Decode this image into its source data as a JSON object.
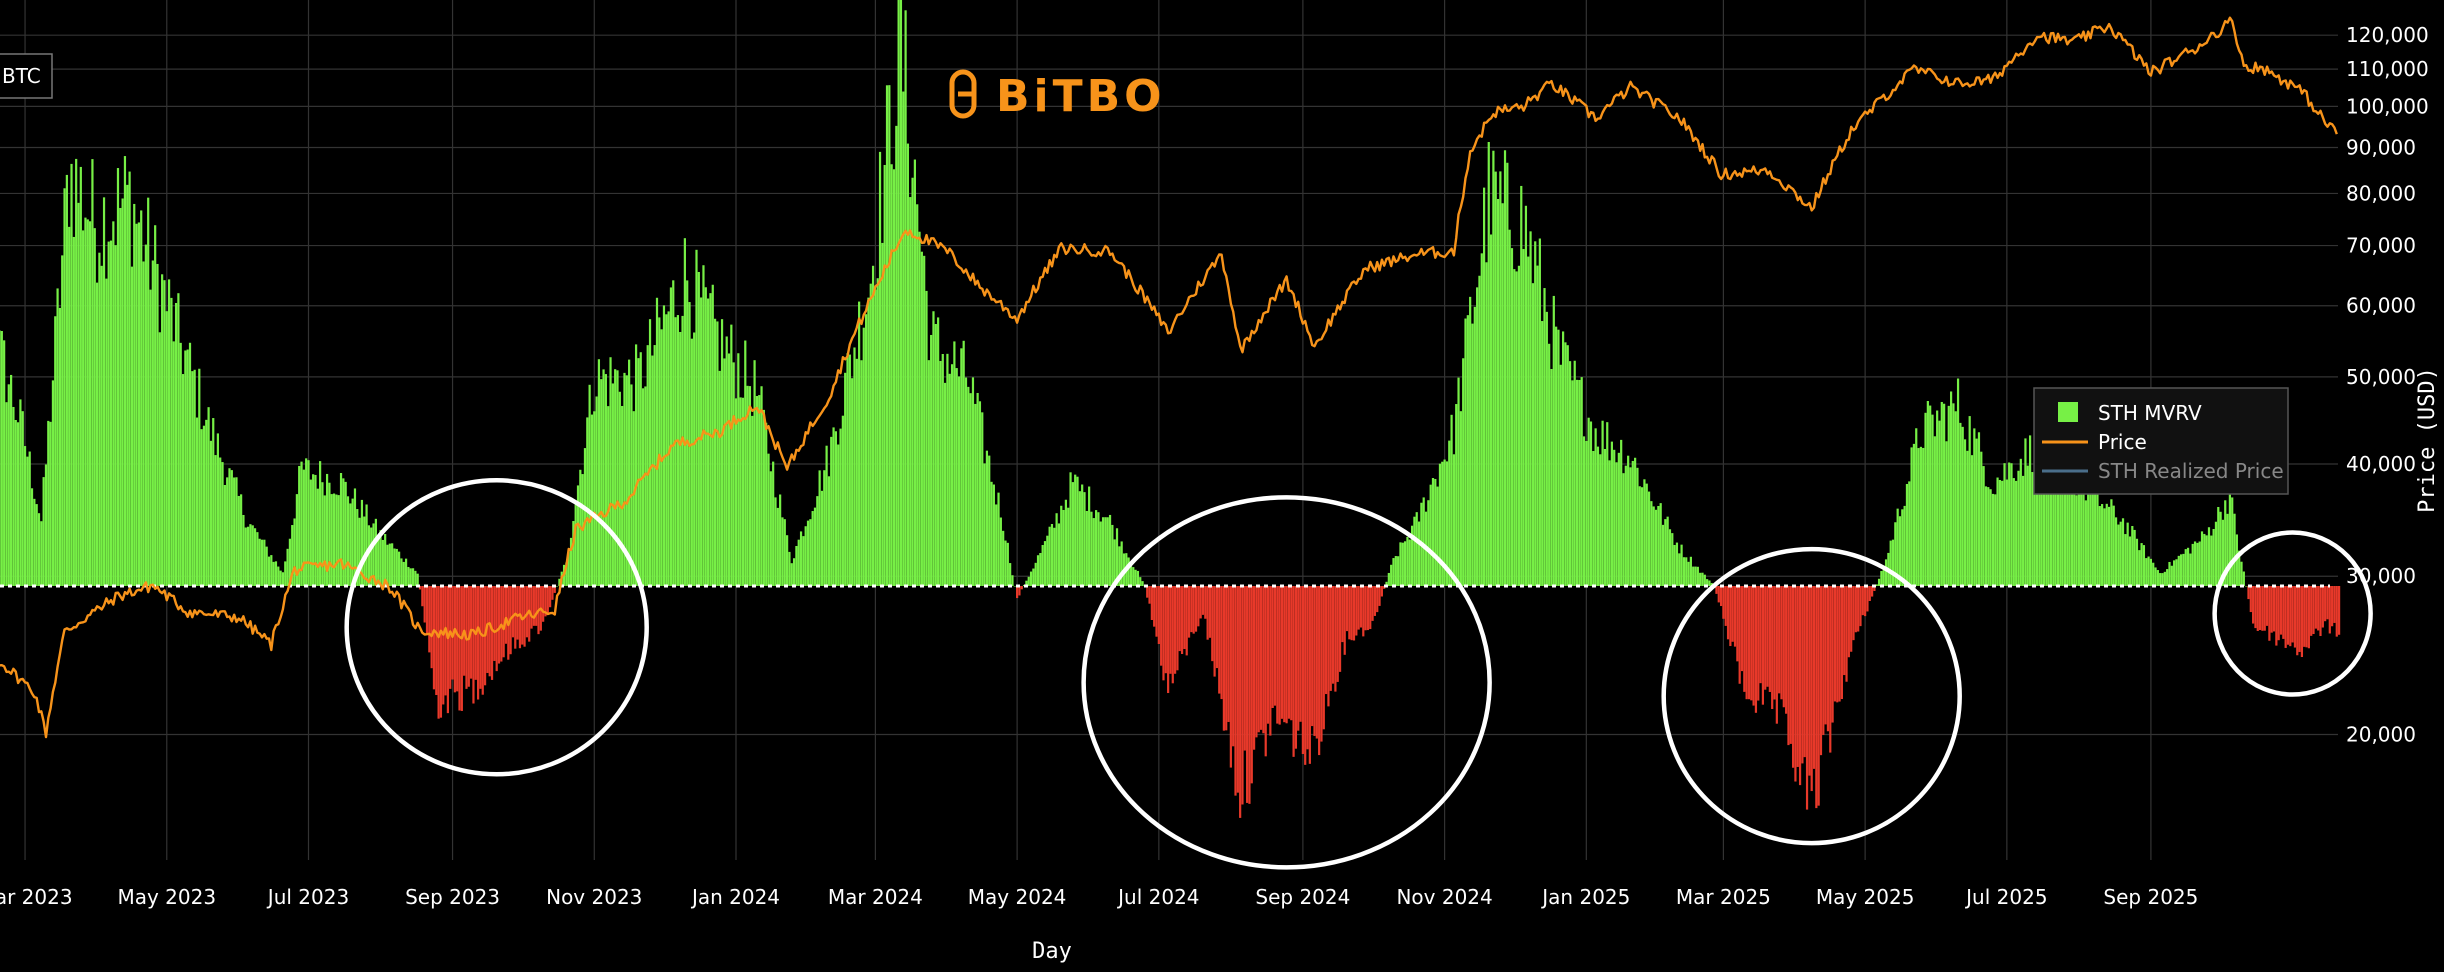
{
  "ticker": {
    "label": "BTC"
  },
  "brand": {
    "name": "BiTBO",
    "color": "#f7931a"
  },
  "colors": {
    "background": "#000000",
    "grid": "#333333",
    "positive_bar": "#77f046",
    "negative_bar": "#e8392a",
    "price_line": "#f7931a",
    "realized_line": "#4a6e8a",
    "annotation_circle": "#ffffff",
    "baseline": "#ffffff"
  },
  "chart_data": {
    "type": "bar",
    "xlabel": "Day",
    "ylabel_right": "Price (USD)",
    "x_range": [
      "2023-02-01",
      "2025-11-30"
    ],
    "x_ticks": [
      {
        "date": "2023-03-01",
        "label": "Mar 2023"
      },
      {
        "date": "2023-05-01",
        "label": "May 2023"
      },
      {
        "date": "2023-07-01",
        "label": "Jul 2023"
      },
      {
        "date": "2023-09-01",
        "label": "Sep 2023"
      },
      {
        "date": "2023-11-01",
        "label": "Nov 2023"
      },
      {
        "date": "2024-01-01",
        "label": "Jan 2024"
      },
      {
        "date": "2024-03-01",
        "label": "Mar 2024"
      },
      {
        "date": "2024-05-01",
        "label": "May 2024"
      },
      {
        "date": "2024-07-01",
        "label": "Jul 2024"
      },
      {
        "date": "2024-09-01",
        "label": "Sep 2024"
      },
      {
        "date": "2024-11-01",
        "label": "Nov 2024"
      },
      {
        "date": "2025-01-01",
        "label": "Jan 2025"
      },
      {
        "date": "2025-03-01",
        "label": "Mar 2025"
      },
      {
        "date": "2025-05-01",
        "label": "May 2025"
      },
      {
        "date": "2025-07-01",
        "label": "Jul 2025"
      },
      {
        "date": "2025-09-01",
        "label": "Sep 2025"
      }
    ],
    "price_axis": {
      "scale": "log",
      "range": [
        14500,
        128000
      ],
      "ticks": [
        {
          "value": 20000,
          "label": "20,000"
        },
        {
          "value": 30000,
          "label": "30,000"
        },
        {
          "value": 40000,
          "label": "40,000"
        },
        {
          "value": 50000,
          "label": "50,000"
        },
        {
          "value": 60000,
          "label": "60,000"
        },
        {
          "value": 70000,
          "label": "70,000"
        },
        {
          "value": 80000,
          "label": "80,000"
        },
        {
          "value": 90000,
          "label": "90,000"
        },
        {
          "value": 100000,
          "label": "100,000"
        },
        {
          "value": 110000,
          "label": "110,000"
        },
        {
          "value": 120000,
          "label": "120,000"
        }
      ]
    },
    "mvrv_axis": {
      "baseline": 1.0,
      "range": [
        0.81,
        1.42
      ]
    },
    "legend": {
      "placement": "right",
      "entries": [
        {
          "name": "STH MVRV",
          "kind": "square",
          "color": "#77f046"
        },
        {
          "name": "Price",
          "kind": "line",
          "color": "#f7931a"
        },
        {
          "name": "STH Realized Price",
          "kind": "line",
          "color": "#4a6e8a",
          "muted": true
        }
      ]
    },
    "mvrv_keypoints": [
      [
        "2023-02-01",
        1.1
      ],
      [
        "2023-02-10",
        1.22
      ],
      [
        "2023-02-20",
        1.17
      ],
      [
        "2023-02-28",
        1.12
      ],
      [
        "2023-03-08",
        1.05
      ],
      [
        "2023-03-20",
        1.32
      ],
      [
        "2023-04-01",
        1.28
      ],
      [
        "2023-04-15",
        1.3
      ],
      [
        "2023-05-01",
        1.22
      ],
      [
        "2023-05-20",
        1.12
      ],
      [
        "2023-06-05",
        1.05
      ],
      [
        "2023-06-20",
        1.01
      ],
      [
        "2023-06-28",
        1.09
      ],
      [
        "2023-07-15",
        1.08
      ],
      [
        "2023-08-01",
        1.04
      ],
      [
        "2023-08-17",
        1.01
      ],
      [
        "2023-08-25",
        0.91
      ],
      [
        "2023-09-10",
        0.92
      ],
      [
        "2023-09-25",
        0.95
      ],
      [
        "2023-10-10",
        0.97
      ],
      [
        "2023-10-20",
        1.02
      ],
      [
        "2023-11-01",
        1.16
      ],
      [
        "2023-11-20",
        1.16
      ],
      [
        "2023-12-10",
        1.24
      ],
      [
        "2023-12-25",
        1.19
      ],
      [
        "2024-01-10",
        1.15
      ],
      [
        "2024-01-25",
        1.02
      ],
      [
        "2024-02-10",
        1.1
      ],
      [
        "2024-02-28",
        1.24
      ],
      [
        "2024-03-12",
        1.42
      ],
      [
        "2024-03-25",
        1.19
      ],
      [
        "2024-04-10",
        1.16
      ],
      [
        "2024-04-25",
        1.05
      ],
      [
        "2024-05-01",
        0.99
      ],
      [
        "2024-05-15",
        1.04
      ],
      [
        "2024-05-25",
        1.08
      ],
      [
        "2024-06-10",
        1.05
      ],
      [
        "2024-06-25",
        1.0
      ],
      [
        "2024-07-05",
        0.92
      ],
      [
        "2024-07-20",
        0.98
      ],
      [
        "2024-08-05",
        0.84
      ],
      [
        "2024-08-20",
        0.9
      ],
      [
        "2024-09-05",
        0.87
      ],
      [
        "2024-09-20",
        0.96
      ],
      [
        "2024-10-01",
        0.97
      ],
      [
        "2024-10-10",
        1.02
      ],
      [
        "2024-10-20",
        1.05
      ],
      [
        "2024-11-05",
        1.12
      ],
      [
        "2024-11-20",
        1.3
      ],
      [
        "2024-12-05",
        1.28
      ],
      [
        "2024-12-20",
        1.18
      ],
      [
        "2025-01-05",
        1.12
      ],
      [
        "2025-01-20",
        1.1
      ],
      [
        "2025-02-10",
        1.03
      ],
      [
        "2025-02-25",
        1.0
      ],
      [
        "2025-03-10",
        0.92
      ],
      [
        "2025-03-25",
        0.9
      ],
      [
        "2025-04-08",
        0.83
      ],
      [
        "2025-04-25",
        0.95
      ],
      [
        "2025-05-10",
        1.02
      ],
      [
        "2025-05-25",
        1.12
      ],
      [
        "2025-06-10",
        1.14
      ],
      [
        "2025-06-25",
        1.08
      ],
      [
        "2025-07-15",
        1.11
      ],
      [
        "2025-08-01",
        1.08
      ],
      [
        "2025-08-20",
        1.05
      ],
      [
        "2025-09-05",
        1.01
      ],
      [
        "2025-09-25",
        1.04
      ],
      [
        "2025-10-05",
        1.07
      ],
      [
        "2025-10-15",
        0.97
      ],
      [
        "2025-10-25",
        0.96
      ],
      [
        "2025-11-05",
        0.95
      ],
      [
        "2025-11-15",
        0.97
      ],
      [
        "2025-11-25",
        0.96
      ]
    ],
    "price_keypoints": [
      [
        "2023-02-01",
        22800
      ],
      [
        "2023-02-15",
        24500
      ],
      [
        "2023-03-05",
        22300
      ],
      [
        "2023-03-10",
        20100
      ],
      [
        "2023-03-18",
        26000
      ],
      [
        "2023-04-10",
        28500
      ],
      [
        "2023-04-25",
        29300
      ],
      [
        "2023-05-10",
        27400
      ],
      [
        "2023-06-01",
        27000
      ],
      [
        "2023-06-15",
        25200
      ],
      [
        "2023-06-25",
        30500
      ],
      [
        "2023-07-15",
        31000
      ],
      [
        "2023-08-05",
        29200
      ],
      [
        "2023-08-18",
        26100
      ],
      [
        "2023-09-10",
        25800
      ],
      [
        "2023-09-30",
        27000
      ],
      [
        "2023-10-15",
        27500
      ],
      [
        "2023-10-24",
        33800
      ],
      [
        "2023-11-15",
        36500
      ],
      [
        "2023-12-05",
        42000
      ],
      [
        "2023-12-25",
        43500
      ],
      [
        "2024-01-10",
        46500
      ],
      [
        "2024-01-23",
        39500
      ],
      [
        "2024-02-10",
        47500
      ],
      [
        "2024-02-28",
        61000
      ],
      [
        "2024-03-14",
        73000
      ],
      [
        "2024-04-01",
        69000
      ],
      [
        "2024-04-15",
        63000
      ],
      [
        "2024-05-01",
        58000
      ],
      [
        "2024-05-20",
        69500
      ],
      [
        "2024-06-10",
        69000
      ],
      [
        "2024-07-05",
        56000
      ],
      [
        "2024-07-28",
        68500
      ],
      [
        "2024-08-05",
        53500
      ],
      [
        "2024-08-25",
        64000
      ],
      [
        "2024-09-06",
        54000
      ],
      [
        "2024-09-28",
        66000
      ],
      [
        "2024-10-20",
        68500
      ],
      [
        "2024-11-05",
        69000
      ],
      [
        "2024-11-12",
        89000
      ],
      [
        "2024-11-22",
        98500
      ],
      [
        "2024-12-05",
        100000
      ],
      [
        "2024-12-17",
        106000
      ],
      [
        "2025-01-05",
        97000
      ],
      [
        "2025-01-20",
        105000
      ],
      [
        "2025-02-10",
        97000
      ],
      [
        "2025-02-28",
        84000
      ],
      [
        "2025-03-20",
        85000
      ],
      [
        "2025-04-08",
        77000
      ],
      [
        "2025-04-25",
        94000
      ],
      [
        "2025-05-22",
        110000
      ],
      [
        "2025-06-10",
        106000
      ],
      [
        "2025-06-25",
        107000
      ],
      [
        "2025-07-14",
        120000
      ],
      [
        "2025-07-30",
        118000
      ],
      [
        "2025-08-14",
        123000
      ],
      [
        "2025-09-01",
        109000
      ],
      [
        "2025-09-20",
        116000
      ],
      [
        "2025-10-06",
        124500
      ],
      [
        "2025-10-11",
        111000
      ],
      [
        "2025-10-20",
        110000
      ],
      [
        "2025-11-05",
        104000
      ],
      [
        "2025-11-15",
        96000
      ],
      [
        "2025-11-25",
        92000
      ]
    ],
    "annotations": [
      {
        "shape": "circle",
        "center_date": "2023-09-20",
        "center_mvrv": 0.97
      },
      {
        "shape": "circle",
        "center_date": "2024-08-25",
        "center_mvrv": 0.93
      },
      {
        "shape": "circle",
        "center_date": "2025-04-08",
        "center_mvrv": 0.92
      },
      {
        "shape": "circle",
        "center_date": "2025-11-01",
        "center_mvrv": 0.98
      }
    ]
  }
}
